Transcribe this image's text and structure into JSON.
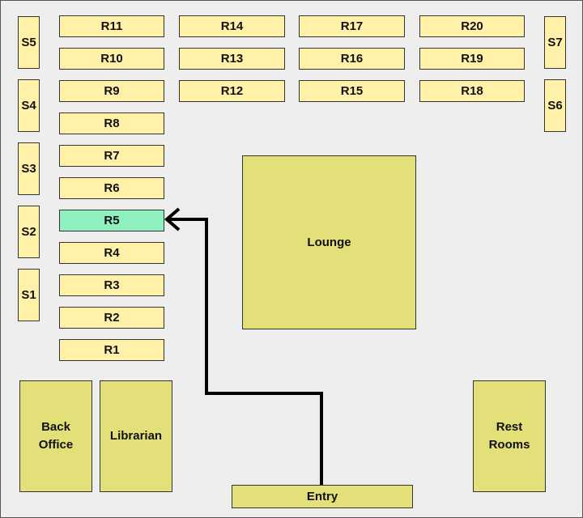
{
  "colors": {
    "room": "#fff2a8",
    "area": "#e3e07a",
    "highlight": "#8ff0c0",
    "path": "#000000"
  },
  "study_rooms": {
    "s1": "S1",
    "s2": "S2",
    "s3": "S3",
    "s4": "S4",
    "s5": "S5",
    "s6": "S6",
    "s7": "S7"
  },
  "rooms": {
    "r1": "R1",
    "r2": "R2",
    "r3": "R3",
    "r4": "R4",
    "r5": "R5",
    "r6": "R6",
    "r7": "R7",
    "r8": "R8",
    "r9": "R9",
    "r10": "R10",
    "r11": "R11",
    "r12": "R12",
    "r13": "R13",
    "r14": "R14",
    "r15": "R15",
    "r16": "R16",
    "r17": "R17",
    "r18": "R18",
    "r19": "R19",
    "r20": "R20"
  },
  "areas": {
    "lounge": "Lounge",
    "back_office": "Back Office",
    "librarian": "Librarian",
    "rest_rooms": "Rest Rooms",
    "entry": "Entry"
  },
  "route": {
    "from": "Entry",
    "to": "R5"
  }
}
